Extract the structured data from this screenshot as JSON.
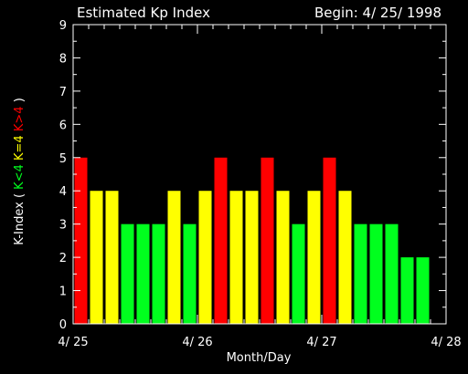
{
  "colors": {
    "background": "#000000",
    "axis": "#ffffff",
    "text": "#ffffff",
    "green": "#00ff1e",
    "yellow": "#ffff00",
    "red": "#ff0000"
  },
  "chart_data": {
    "type": "bar",
    "title": "Estimated Kp Index",
    "subtitle": "Begin: 4/ 25/ 1998",
    "xlabel": "Month/Day",
    "ylabel": {
      "prefix": "K-Index (",
      "green_part": "K<4",
      "yellow_part": "K=4",
      "red_part": "K>4",
      "suffix": ")"
    },
    "ylim": [
      0,
      9
    ],
    "y_ticks": [
      "0",
      "1",
      "2",
      "3",
      "4",
      "5",
      "6",
      "7",
      "8",
      "9"
    ],
    "xlim": [
      0,
      3
    ],
    "x_unit": "days since 4/25",
    "x_ticks": [
      {
        "label": "4/ 25",
        "pos": 0
      },
      {
        "label": "4/ 26",
        "pos": 1
      },
      {
        "label": "4/ 27",
        "pos": 2
      },
      {
        "label": "4/ 28",
        "pos": 3
      }
    ],
    "bar_interval_days": 0.125,
    "grid": false,
    "legend": "none",
    "values": [
      5,
      4,
      4,
      3,
      3,
      3,
      4,
      3,
      4,
      5,
      4,
      4,
      5,
      4,
      3,
      4,
      5,
      4,
      3,
      3,
      3,
      2,
      2
    ]
  }
}
